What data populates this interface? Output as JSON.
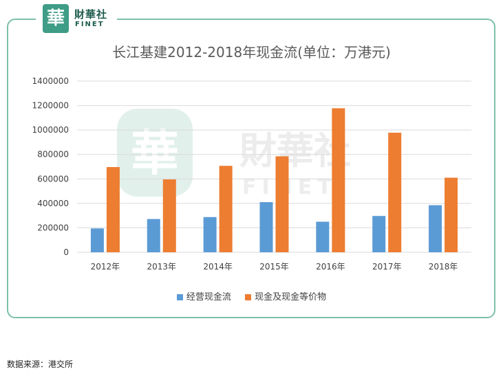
{
  "logo": {
    "seal_char": "華",
    "cn": "財華社",
    "en": "FINET"
  },
  "watermark": {
    "seal_char": "華",
    "cn": "財華社",
    "en": "FINET"
  },
  "source_note": "数据来源：港交所",
  "colors": {
    "series1": "#5b9bd5",
    "series2": "#ed7d31",
    "frame": "#7bbfaa",
    "grid": "#d9d9d9"
  },
  "chart_data": {
    "type": "bar",
    "title": "长江基建2012-2018年现金流(单位：万港元)",
    "categories": [
      "2012年",
      "2013年",
      "2014年",
      "2015年",
      "2016年",
      "2017年",
      "2018年"
    ],
    "series": [
      {
        "name": "经营现金流",
        "values": [
          195000,
          272000,
          288000,
          410000,
          250000,
          297000,
          385000
        ]
      },
      {
        "name": "现金及现金等价物",
        "values": [
          697000,
          596000,
          707000,
          785000,
          1178000,
          978000,
          610000
        ]
      }
    ],
    "ylim": [
      0,
      1400000
    ],
    "yticks": [
      "0",
      "200000",
      "400000",
      "600000",
      "800000",
      "1000000",
      "1200000",
      "1400000"
    ],
    "grid": true,
    "legend_position": "bottom"
  }
}
